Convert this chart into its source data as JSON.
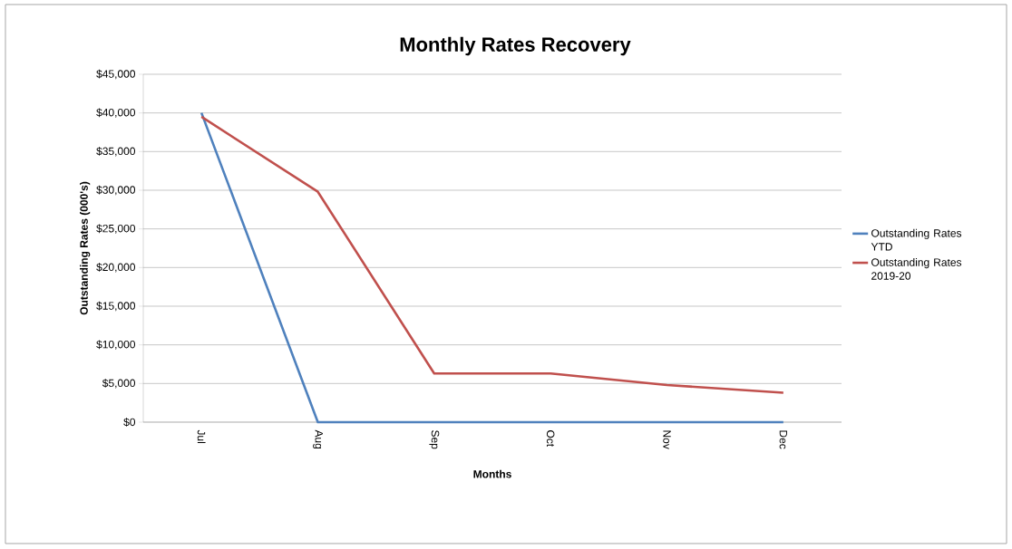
{
  "chart_data": {
    "type": "line",
    "title": "Monthly Rates Recovery",
    "xlabel": "Months",
    "ylabel": "Outstanding Rates (000's)",
    "categories": [
      "Jul",
      "Aug",
      "Sep",
      "Oct",
      "Nov",
      "Dec"
    ],
    "series": [
      {
        "name": "Outstanding Rates YTD",
        "color": "#4f81bd",
        "values": [
          40000,
          0,
          0,
          0,
          0,
          0
        ]
      },
      {
        "name": "Outstanding Rates 2019-20",
        "color": "#c0504d",
        "values": [
          39500,
          29800,
          6300,
          6300,
          4800,
          3800
        ]
      }
    ],
    "ylim": [
      0,
      45000
    ],
    "yticks": [
      {
        "value": 0,
        "label": "$0"
      },
      {
        "value": 5000,
        "label": "$5,000"
      },
      {
        "value": 10000,
        "label": "$10,000"
      },
      {
        "value": 15000,
        "label": "$15,000"
      },
      {
        "value": 20000,
        "label": "$20,000"
      },
      {
        "value": 25000,
        "label": "$25,000"
      },
      {
        "value": 30000,
        "label": "$30,000"
      },
      {
        "value": 35000,
        "label": "$35,000"
      },
      {
        "value": 40000,
        "label": "$40,000"
      },
      {
        "value": 45000,
        "label": "$45,000"
      }
    ],
    "grid": "y",
    "legend": "right",
    "marker": "none",
    "line_style": "solid"
  }
}
